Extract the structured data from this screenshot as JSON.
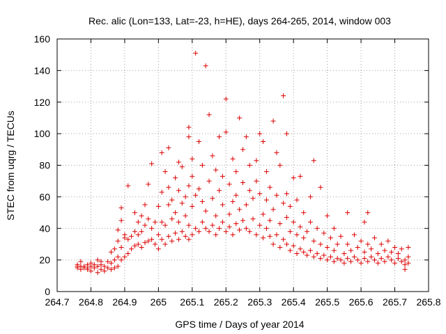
{
  "chart_data": {
    "type": "scatter",
    "title": "Rec. alic (Lon=133, Lat=-23, h=HE), days 264-265, 2014, window 003",
    "xlabel": "GPS time / Days of year 2014",
    "ylabel": "STEC from uqrg / TECUs",
    "xlim": [
      264.7,
      265.8
    ],
    "ylim": [
      0,
      160
    ],
    "x_ticks": [
      "264.7",
      "264.8",
      "264.9",
      "265",
      "265.1",
      "265.2",
      "265.3",
      "265.4",
      "265.5",
      "265.6",
      "265.7",
      "265.8"
    ],
    "y_ticks": [
      "0",
      "20",
      "40",
      "60",
      "80",
      "100",
      "120",
      "140",
      "160"
    ],
    "grid": true,
    "marker": "plus",
    "color": "#dd0000",
    "series": [
      {
        "name": "",
        "points": [
          [
            264.76,
            15
          ],
          [
            264.76,
            16
          ],
          [
            264.76,
            17
          ],
          [
            264.77,
            14
          ],
          [
            264.77,
            16
          ],
          [
            264.77,
            19
          ],
          [
            264.78,
            15
          ],
          [
            264.78,
            16
          ],
          [
            264.79,
            14
          ],
          [
            264.79,
            15
          ],
          [
            264.79,
            17
          ],
          [
            264.8,
            13
          ],
          [
            264.8,
            16
          ],
          [
            264.8,
            18
          ],
          [
            264.81,
            15
          ],
          [
            264.81,
            17
          ],
          [
            264.82,
            12
          ],
          [
            264.82,
            16
          ],
          [
            264.82,
            20
          ],
          [
            264.83,
            14
          ],
          [
            264.83,
            17
          ],
          [
            264.83,
            19
          ],
          [
            264.84,
            13
          ],
          [
            264.84,
            16
          ],
          [
            264.85,
            15
          ],
          [
            264.85,
            19
          ],
          [
            264.86,
            14
          ],
          [
            264.86,
            18
          ],
          [
            264.86,
            25
          ],
          [
            264.87,
            15
          ],
          [
            264.87,
            20
          ],
          [
            264.87,
            27
          ],
          [
            264.88,
            16
          ],
          [
            264.88,
            22
          ],
          [
            264.88,
            32
          ],
          [
            264.88,
            39
          ],
          [
            264.89,
            20
          ],
          [
            264.89,
            28
          ],
          [
            264.89,
            45
          ],
          [
            264.89,
            53
          ],
          [
            264.9,
            22
          ],
          [
            264.9,
            34
          ],
          [
            264.9,
            36
          ],
          [
            264.91,
            24
          ],
          [
            264.91,
            33
          ],
          [
            264.91,
            67
          ],
          [
            264.92,
            27
          ],
          [
            264.92,
            35
          ],
          [
            264.93,
            29
          ],
          [
            264.93,
            38
          ],
          [
            264.93,
            50
          ],
          [
            264.94,
            30
          ],
          [
            264.94,
            36
          ],
          [
            264.94,
            44
          ],
          [
            264.95,
            28
          ],
          [
            264.95,
            38
          ],
          [
            264.95,
            48
          ],
          [
            264.96,
            31
          ],
          [
            264.96,
            42
          ],
          [
            264.96,
            55
          ],
          [
            264.97,
            32
          ],
          [
            264.97,
            46
          ],
          [
            264.97,
            68
          ],
          [
            264.98,
            33
          ],
          [
            264.98,
            40
          ],
          [
            264.98,
            81
          ],
          [
            264.99,
            30
          ],
          [
            264.99,
            44
          ],
          [
            265.0,
            27
          ],
          [
            265.0,
            36
          ],
          [
            265.0,
            54
          ],
          [
            265.01,
            33
          ],
          [
            265.01,
            44
          ],
          [
            265.01,
            63
          ],
          [
            265.01,
            88
          ],
          [
            265.02,
            30
          ],
          [
            265.02,
            42
          ],
          [
            265.02,
            76
          ],
          [
            265.03,
            35
          ],
          [
            265.03,
            55
          ],
          [
            265.03,
            66
          ],
          [
            265.03,
            91
          ],
          [
            265.04,
            32
          ],
          [
            265.04,
            46
          ],
          [
            265.04,
            58
          ],
          [
            265.05,
            37
          ],
          [
            265.05,
            50
          ],
          [
            265.05,
            72
          ],
          [
            265.06,
            33
          ],
          [
            265.06,
            44
          ],
          [
            265.06,
            64
          ],
          [
            265.06,
            82
          ],
          [
            265.07,
            38
          ],
          [
            265.07,
            56
          ],
          [
            265.07,
            79
          ],
          [
            265.08,
            35
          ],
          [
            265.08,
            48
          ],
          [
            265.08,
            60
          ],
          [
            265.09,
            33
          ],
          [
            265.09,
            42
          ],
          [
            265.09,
            67
          ],
          [
            265.09,
            98
          ],
          [
            265.09,
            104
          ],
          [
            265.1,
            36
          ],
          [
            265.1,
            54
          ],
          [
            265.1,
            73
          ],
          [
            265.1,
            84
          ],
          [
            265.11,
            151
          ],
          [
            265.11,
            40
          ],
          [
            265.11,
            61
          ],
          [
            265.12,
            38
          ],
          [
            265.12,
            95
          ],
          [
            265.12,
            65
          ],
          [
            265.13,
            44
          ],
          [
            265.13,
            57
          ],
          [
            265.13,
            80
          ],
          [
            265.14,
            143
          ],
          [
            265.14,
            40
          ],
          [
            265.14,
            51
          ],
          [
            265.15,
            112
          ],
          [
            265.15,
            38
          ],
          [
            265.15,
            70
          ],
          [
            265.16,
            42
          ],
          [
            265.16,
            59
          ],
          [
            265.16,
            86
          ],
          [
            265.17,
            36
          ],
          [
            265.17,
            48
          ],
          [
            265.17,
            77
          ],
          [
            265.18,
            40
          ],
          [
            265.18,
            64
          ],
          [
            265.18,
            98
          ],
          [
            265.19,
            44
          ],
          [
            265.19,
            55
          ],
          [
            265.19,
            73
          ],
          [
            265.2,
            38
          ],
          [
            265.2,
            101
          ],
          [
            265.2,
            122
          ],
          [
            265.21,
            41
          ],
          [
            265.21,
            49
          ],
          [
            265.21,
            68
          ],
          [
            265.22,
            36
          ],
          [
            265.22,
            57
          ],
          [
            265.22,
            84
          ],
          [
            265.23,
            43
          ],
          [
            265.23,
            61
          ],
          [
            265.23,
            76
          ],
          [
            265.24,
            110
          ],
          [
            265.24,
            39
          ],
          [
            265.24,
            52
          ],
          [
            265.25,
            45
          ],
          [
            265.25,
            69
          ],
          [
            265.25,
            90
          ],
          [
            265.26,
            40
          ],
          [
            265.26,
            55
          ],
          [
            265.26,
            98
          ],
          [
            265.27,
            38
          ],
          [
            265.27,
            64
          ],
          [
            265.27,
            80
          ],
          [
            265.28,
            46
          ],
          [
            265.28,
            59
          ],
          [
            265.29,
            36
          ],
          [
            265.29,
            70
          ],
          [
            265.29,
            83
          ],
          [
            265.3,
            42
          ],
          [
            265.3,
            62
          ],
          [
            265.3,
            100
          ],
          [
            265.31,
            34
          ],
          [
            265.31,
            49
          ],
          [
            265.31,
            95
          ],
          [
            265.32,
            40
          ],
          [
            265.32,
            58
          ],
          [
            265.32,
            76
          ],
          [
            265.33,
            35
          ],
          [
            265.33,
            45
          ],
          [
            265.33,
            66
          ],
          [
            265.34,
            30
          ],
          [
            265.34,
            52
          ],
          [
            265.34,
            108
          ],
          [
            265.35,
            36
          ],
          [
            265.35,
            61
          ],
          [
            265.35,
            88
          ],
          [
            265.36,
            28
          ],
          [
            265.36,
            43
          ],
          [
            265.36,
            80
          ],
          [
            265.37,
            124
          ],
          [
            265.37,
            33
          ],
          [
            265.37,
            56
          ],
          [
            265.38,
            30
          ],
          [
            265.38,
            47
          ],
          [
            265.38,
            62
          ],
          [
            265.38,
            100
          ],
          [
            265.39,
            26
          ],
          [
            265.39,
            38
          ],
          [
            265.39,
            54
          ],
          [
            265.4,
            29
          ],
          [
            265.4,
            44
          ],
          [
            265.4,
            72
          ],
          [
            265.41,
            24
          ],
          [
            265.41,
            36
          ],
          [
            265.41,
            58
          ],
          [
            265.42,
            27
          ],
          [
            265.42,
            41
          ],
          [
            265.42,
            73
          ],
          [
            265.43,
            25
          ],
          [
            265.43,
            34
          ],
          [
            265.43,
            50
          ],
          [
            265.44,
            23
          ],
          [
            265.44,
            38
          ],
          [
            265.45,
            26
          ],
          [
            265.45,
            44
          ],
          [
            265.45,
            60
          ],
          [
            265.46,
            22
          ],
          [
            265.46,
            32
          ],
          [
            265.46,
            83
          ],
          [
            265.47,
            24
          ],
          [
            265.47,
            40
          ],
          [
            265.48,
            21
          ],
          [
            265.48,
            30
          ],
          [
            265.48,
            66
          ],
          [
            265.49,
            23
          ],
          [
            265.49,
            37
          ],
          [
            265.5,
            20
          ],
          [
            265.5,
            28
          ],
          [
            265.5,
            48
          ],
          [
            265.51,
            22
          ],
          [
            265.51,
            34
          ],
          [
            265.52,
            19
          ],
          [
            265.52,
            26
          ],
          [
            265.52,
            40
          ],
          [
            265.53,
            21
          ],
          [
            265.53,
            30
          ],
          [
            265.54,
            20
          ],
          [
            265.54,
            35
          ],
          [
            265.55,
            18
          ],
          [
            265.55,
            24
          ],
          [
            265.56,
            21
          ],
          [
            265.56,
            30
          ],
          [
            265.56,
            50
          ],
          [
            265.57,
            19
          ],
          [
            265.57,
            26
          ],
          [
            265.58,
            22
          ],
          [
            265.58,
            36
          ],
          [
            265.59,
            20
          ],
          [
            265.59,
            28
          ],
          [
            265.6,
            18
          ],
          [
            265.6,
            32
          ],
          [
            265.61,
            21
          ],
          [
            265.61,
            25
          ],
          [
            265.61,
            44
          ],
          [
            265.62,
            19
          ],
          [
            265.62,
            30
          ],
          [
            265.62,
            50
          ],
          [
            265.63,
            22
          ],
          [
            265.63,
            27
          ],
          [
            265.64,
            20
          ],
          [
            265.64,
            34
          ],
          [
            265.65,
            18
          ],
          [
            265.65,
            24
          ],
          [
            265.66,
            21
          ],
          [
            265.66,
            30
          ],
          [
            265.67,
            19
          ],
          [
            265.67,
            26
          ],
          [
            265.68,
            22
          ],
          [
            265.68,
            32
          ],
          [
            265.69,
            20
          ],
          [
            265.69,
            25
          ],
          [
            265.7,
            18
          ],
          [
            265.7,
            28
          ],
          [
            265.71,
            21
          ],
          [
            265.71,
            24
          ],
          [
            265.72,
            19
          ],
          [
            265.72,
            27
          ],
          [
            265.73,
            17
          ],
          [
            265.73,
            20
          ],
          [
            265.73,
            14
          ],
          [
            265.74,
            18
          ],
          [
            265.74,
            22
          ],
          [
            265.74,
            28
          ]
        ]
      }
    ]
  }
}
